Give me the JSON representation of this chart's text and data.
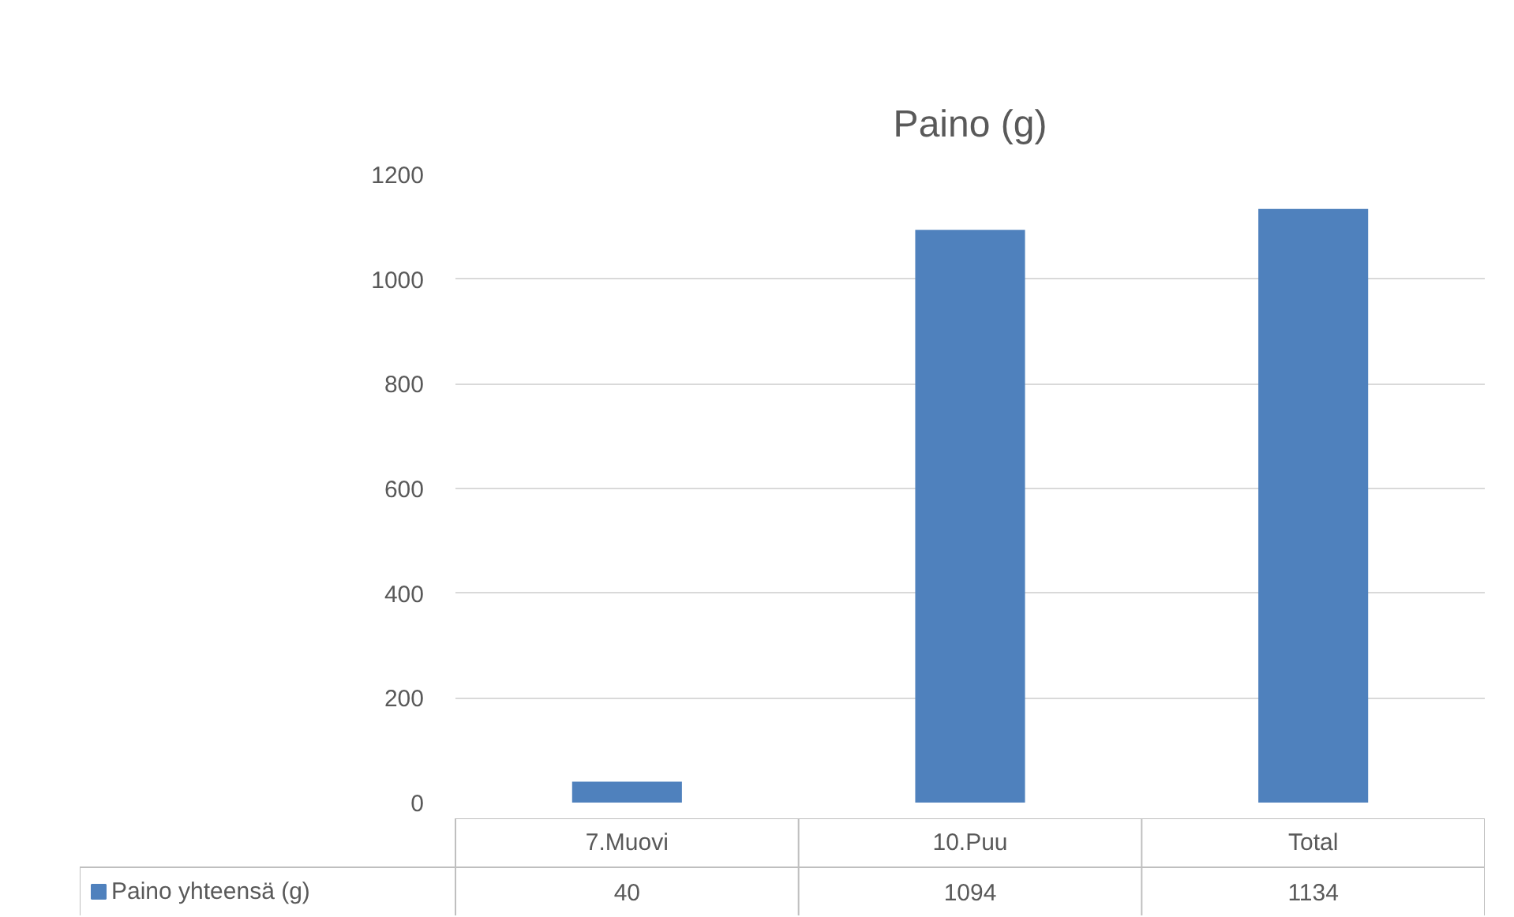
{
  "chart_data": {
    "type": "bar",
    "title": "Paino (g)",
    "categories": [
      "7.Muovi",
      "10.Puu",
      "Total"
    ],
    "series": [
      {
        "name": "Paino yhteensä (g)",
        "color": "#4f81bd",
        "values": [
          40,
          1094,
          1134
        ]
      }
    ],
    "ylim": [
      0,
      1200
    ],
    "yticks": [
      0,
      200,
      400,
      600,
      800,
      1000,
      1200
    ],
    "grid": "y",
    "legend": "bottom",
    "data_labels": true
  }
}
